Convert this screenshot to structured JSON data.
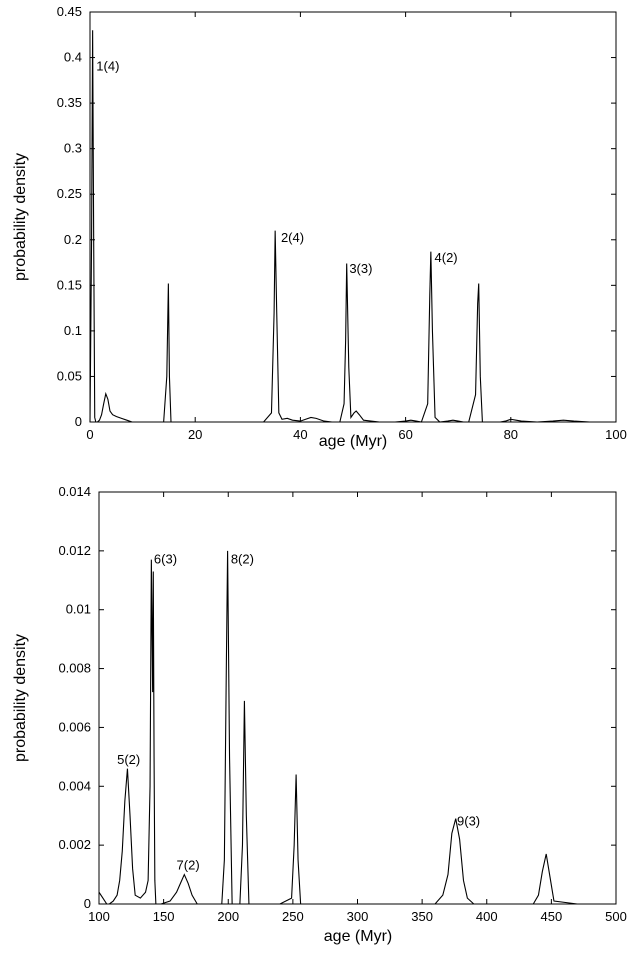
{
  "chart_data": [
    {
      "type": "line",
      "xlabel": "age (Myr)",
      "ylabel": "probability density",
      "xlim": [
        0,
        100
      ],
      "ylim": [
        0,
        0.45
      ],
      "xticks": [
        0,
        20,
        40,
        60,
        80,
        100
      ],
      "yticks": [
        0,
        0.05,
        0.1,
        0.15,
        0.2,
        0.25,
        0.3,
        0.35,
        0.4,
        0.45
      ],
      "xtick_labels": [
        "0",
        "20",
        "40",
        "60",
        "80",
        "100"
      ],
      "ytick_labels": [
        "0",
        "0.05",
        "0.1",
        "0.15",
        "0.2",
        "0.25",
        "0.3",
        "0.35",
        "0.4",
        "0.45"
      ],
      "grid": false,
      "series": [
        {
          "x": [
            0,
            0.3,
            0.5,
            0.7,
            0.9,
            1.1,
            1.4,
            1.8,
            2.2,
            2.6,
            3.0,
            3.4,
            3.8,
            4.3,
            5,
            6,
            7,
            8,
            10,
            12,
            14,
            14.6,
            14.9,
            15.1,
            15.4,
            16,
            20,
            25,
            30,
            33,
            34.5,
            35,
            35.2,
            35.5,
            35.9,
            36.5,
            37.5,
            38.5,
            40,
            41,
            42,
            43,
            44.5,
            46,
            47.5,
            48.3,
            48.6,
            48.8,
            49.2,
            49.6,
            50.2,
            50.6,
            51.2,
            52,
            55,
            58,
            60,
            61,
            62,
            63,
            64.2,
            64.6,
            64.8,
            65.1,
            65.6,
            66.5,
            68,
            69,
            70,
            71,
            72,
            73.3,
            73.7,
            73.9,
            74.2,
            74.6,
            76,
            78,
            79,
            80,
            81,
            82,
            85,
            88,
            90,
            92,
            95,
            100
          ],
          "values": [
            0,
            0.2,
            0.43,
            0.2,
            0.005,
            0,
            0,
            0.002,
            0.008,
            0.02,
            0.031,
            0.025,
            0.012,
            0.008,
            0.006,
            0.004,
            0.002,
            0,
            0,
            0,
            0,
            0.05,
            0.152,
            0.05,
            0,
            0,
            0,
            0,
            0,
            0,
            0.01,
            0.12,
            0.21,
            0.12,
            0.01,
            0.003,
            0.004,
            0.002,
            0.001,
            0.003,
            0.005,
            0.004,
            0.001,
            0,
            0,
            0.02,
            0.09,
            0.174,
            0.06,
            0.005,
            0.01,
            0.012,
            0.008,
            0.002,
            0,
            0,
            0.001,
            0.002,
            0.001,
            0,
            0.02,
            0.14,
            0.187,
            0.1,
            0.005,
            0,
            0.001,
            0.002,
            0.001,
            0,
            0,
            0.03,
            0.13,
            0.152,
            0.05,
            0,
            0,
            0,
            0.001,
            0.003,
            0.002,
            0.001,
            0,
            0.001,
            0.002,
            0.001,
            0,
            0
          ]
        }
      ],
      "annotations": [
        {
          "text": "1(4)",
          "x": 1.2,
          "y": 0.39
        },
        {
          "text": "2(4)",
          "x": 36.3,
          "y": 0.202
        },
        {
          "text": "3(3)",
          "x": 49.3,
          "y": 0.168
        },
        {
          "text": "4(2)",
          "x": 65.5,
          "y": 0.18
        }
      ]
    },
    {
      "type": "line",
      "xlabel": "age (Myr)",
      "ylabel": "probability density",
      "xlim": [
        100,
        500
      ],
      "ylim": [
        0,
        0.014
      ],
      "xticks": [
        100,
        150,
        200,
        250,
        300,
        350,
        400,
        450,
        500
      ],
      "yticks": [
        0,
        0.002,
        0.004,
        0.006,
        0.008,
        0.01,
        0.012,
        0.014
      ],
      "xtick_labels": [
        "100",
        "150",
        "200",
        "250",
        "300",
        "350",
        "400",
        "450",
        "500"
      ],
      "ytick_labels": [
        "0",
        "0.002",
        "0.004",
        "0.006",
        "0.008",
        "0.01",
        "0.012",
        "0.014"
      ],
      "grid": false,
      "series": [
        {
          "x": [
            100,
            103,
            106,
            108,
            111,
            114,
            116,
            118,
            120,
            122,
            124,
            126,
            128,
            132,
            136,
            138,
            139.5,
            140.5,
            141.5,
            142,
            142.6,
            143.2,
            144,
            145,
            148,
            155,
            160,
            163,
            166,
            169,
            172,
            176,
            185,
            195,
            197,
            198.5,
            199.5,
            201,
            203,
            206,
            209,
            211,
            212.5,
            214,
            216,
            220,
            240,
            249,
            251,
            252.5,
            254,
            256,
            280,
            320,
            360,
            366,
            370,
            373,
            376,
            379,
            382,
            385,
            390,
            420,
            436,
            440,
            443,
            446,
            449,
            452,
            470,
            500
          ],
          "values": [
            0.0004,
            0.0002,
            0,
            0,
            0.0001,
            0.0003,
            0.0008,
            0.0018,
            0.0035,
            0.0046,
            0.003,
            0.0012,
            0.0003,
            0.0002,
            0.0004,
            0.0008,
            0.004,
            0.0117,
            0.0072,
            0.0113,
            0.005,
            0.0008,
            0,
            0,
            0,
            0.0001,
            0.0004,
            0.0007,
            0.001,
            0.0007,
            0.0003,
            0,
            0,
            0,
            0.0015,
            0.008,
            0.012,
            0.005,
            0,
            0,
            0,
            0.002,
            0.0069,
            0.003,
            0,
            0,
            0,
            0.0002,
            0.002,
            0.0044,
            0.0015,
            0,
            0,
            0,
            0,
            0.0003,
            0.001,
            0.0024,
            0.0029,
            0.0022,
            0.0008,
            0.0002,
            0,
            0,
            0,
            0.0003,
            0.0011,
            0.0017,
            0.0009,
            0.0001,
            0,
            0
          ]
        }
      ],
      "annotations": [
        {
          "text": "5(2)",
          "x": 114,
          "y": 0.0049
        },
        {
          "text": "6(3)",
          "x": 142.5,
          "y": 0.0117
        },
        {
          "text": "7(2)",
          "x": 160,
          "y": 0.0013
        },
        {
          "text": "8(2)",
          "x": 202,
          "y": 0.0117
        },
        {
          "text": "9(3)",
          "x": 377,
          "y": 0.0028
        }
      ]
    }
  ]
}
